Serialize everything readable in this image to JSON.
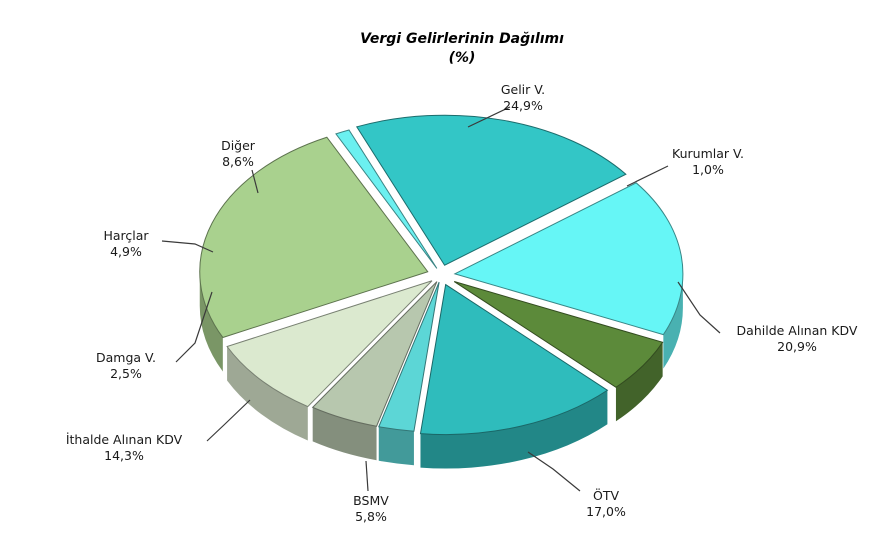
{
  "chart_data": {
    "type": "pie",
    "title": "Vergi Gelirlerinin Dağılımı",
    "subtitle": "(%)",
    "slices": [
      {
        "name": "Gelir V.",
        "value": 24.9,
        "value_label": "24,9%",
        "color": "#a9d18e"
      },
      {
        "name": "Kurumlar V.",
        "value": 1.0,
        "value_label": "1,0%",
        "color": "#6bf0f0"
      },
      {
        "name": "Dahilde Alınan KDV",
        "value": 20.9,
        "value_label": "20,9%",
        "color": "#33c6c6"
      },
      {
        "name": "ÖTV",
        "value": 17.0,
        "value_label": "17,0%",
        "color": "#66f6f6"
      },
      {
        "name": "BSMV",
        "value": 5.8,
        "value_label": "5,8%",
        "color": "#5c8a3a"
      },
      {
        "name": "İthalde Alınan KDV",
        "value": 14.3,
        "value_label": "14,3%",
        "color": "#2fbcbc"
      },
      {
        "name": "Damga V.",
        "value": 2.5,
        "value_label": "2,5%",
        "color": "#5cd6d6"
      },
      {
        "name": "Harçlar",
        "value": 4.9,
        "value_label": "4,9%",
        "color": "#b7c7ae"
      },
      {
        "name": "Diğer",
        "value": 8.6,
        "value_label": "8,6%",
        "color": "#dbe9cf"
      }
    ]
  }
}
